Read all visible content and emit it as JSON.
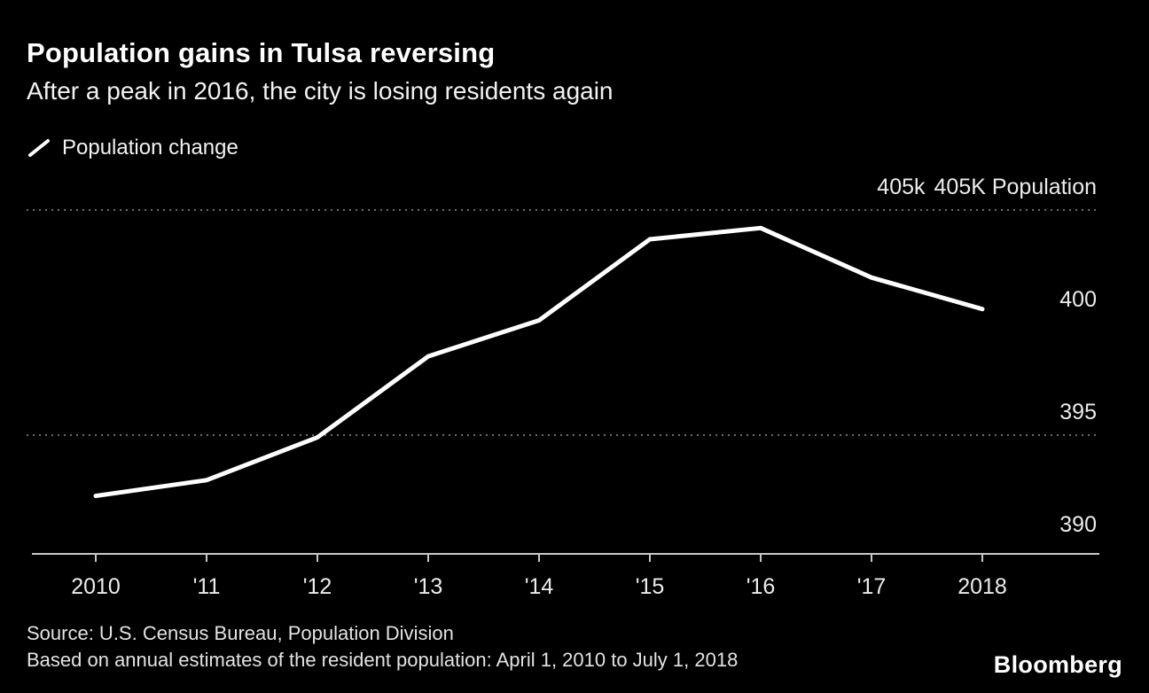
{
  "header": {
    "title": "Population gains in Tulsa reversing",
    "subtitle": "After a peak in 2016, the city is losing residents again"
  },
  "legend": {
    "label": "Population change"
  },
  "chart_data": {
    "type": "line",
    "title": "Population gains in Tulsa reversing",
    "subtitle": "After a peak in 2016, the city is losing residents again",
    "x": [
      2010,
      2011,
      2012,
      2013,
      2014,
      2015,
      2016,
      2017,
      2018
    ],
    "x_tick_labels": [
      "2010",
      "'11",
      "'12",
      "'13",
      "'14",
      "'15",
      "'16",
      "'17",
      "2018"
    ],
    "series": [
      {
        "name": "Population change",
        "values": [
          392.3,
          393.0,
          394.9,
          398.5,
          400.1,
          403.7,
          404.2,
          402.0,
          400.6
        ]
      }
    ],
    "units": "thousands of residents",
    "y_ticks": [
      {
        "value": 405,
        "label": "405k"
      },
      {
        "value": 400,
        "label": "400"
      },
      {
        "value": 395,
        "label": "395"
      },
      {
        "value": 390,
        "label": "390"
      }
    ],
    "y_gridlines": [
      405,
      395
    ],
    "y_axis_title": "405K Population",
    "ylim": [
      389.5,
      406.5
    ],
    "xlabel": "",
    "ylabel": "405K Population",
    "grid": "dotted-horizontal",
    "legend_position": "top-left"
  },
  "footer": {
    "source": "Source: U.S. Census Bureau, Population Division",
    "note": "Based on annual estimates of the resident population: April 1, 2010 to July 1, 2018",
    "brand": "Bloomberg"
  },
  "colors": {
    "background": "#000000",
    "line": "#ffffff",
    "grid": "#8f8f8f",
    "axis": "#c8c8c8",
    "title_text": "#ffffff",
    "label_text": "#ececec"
  }
}
